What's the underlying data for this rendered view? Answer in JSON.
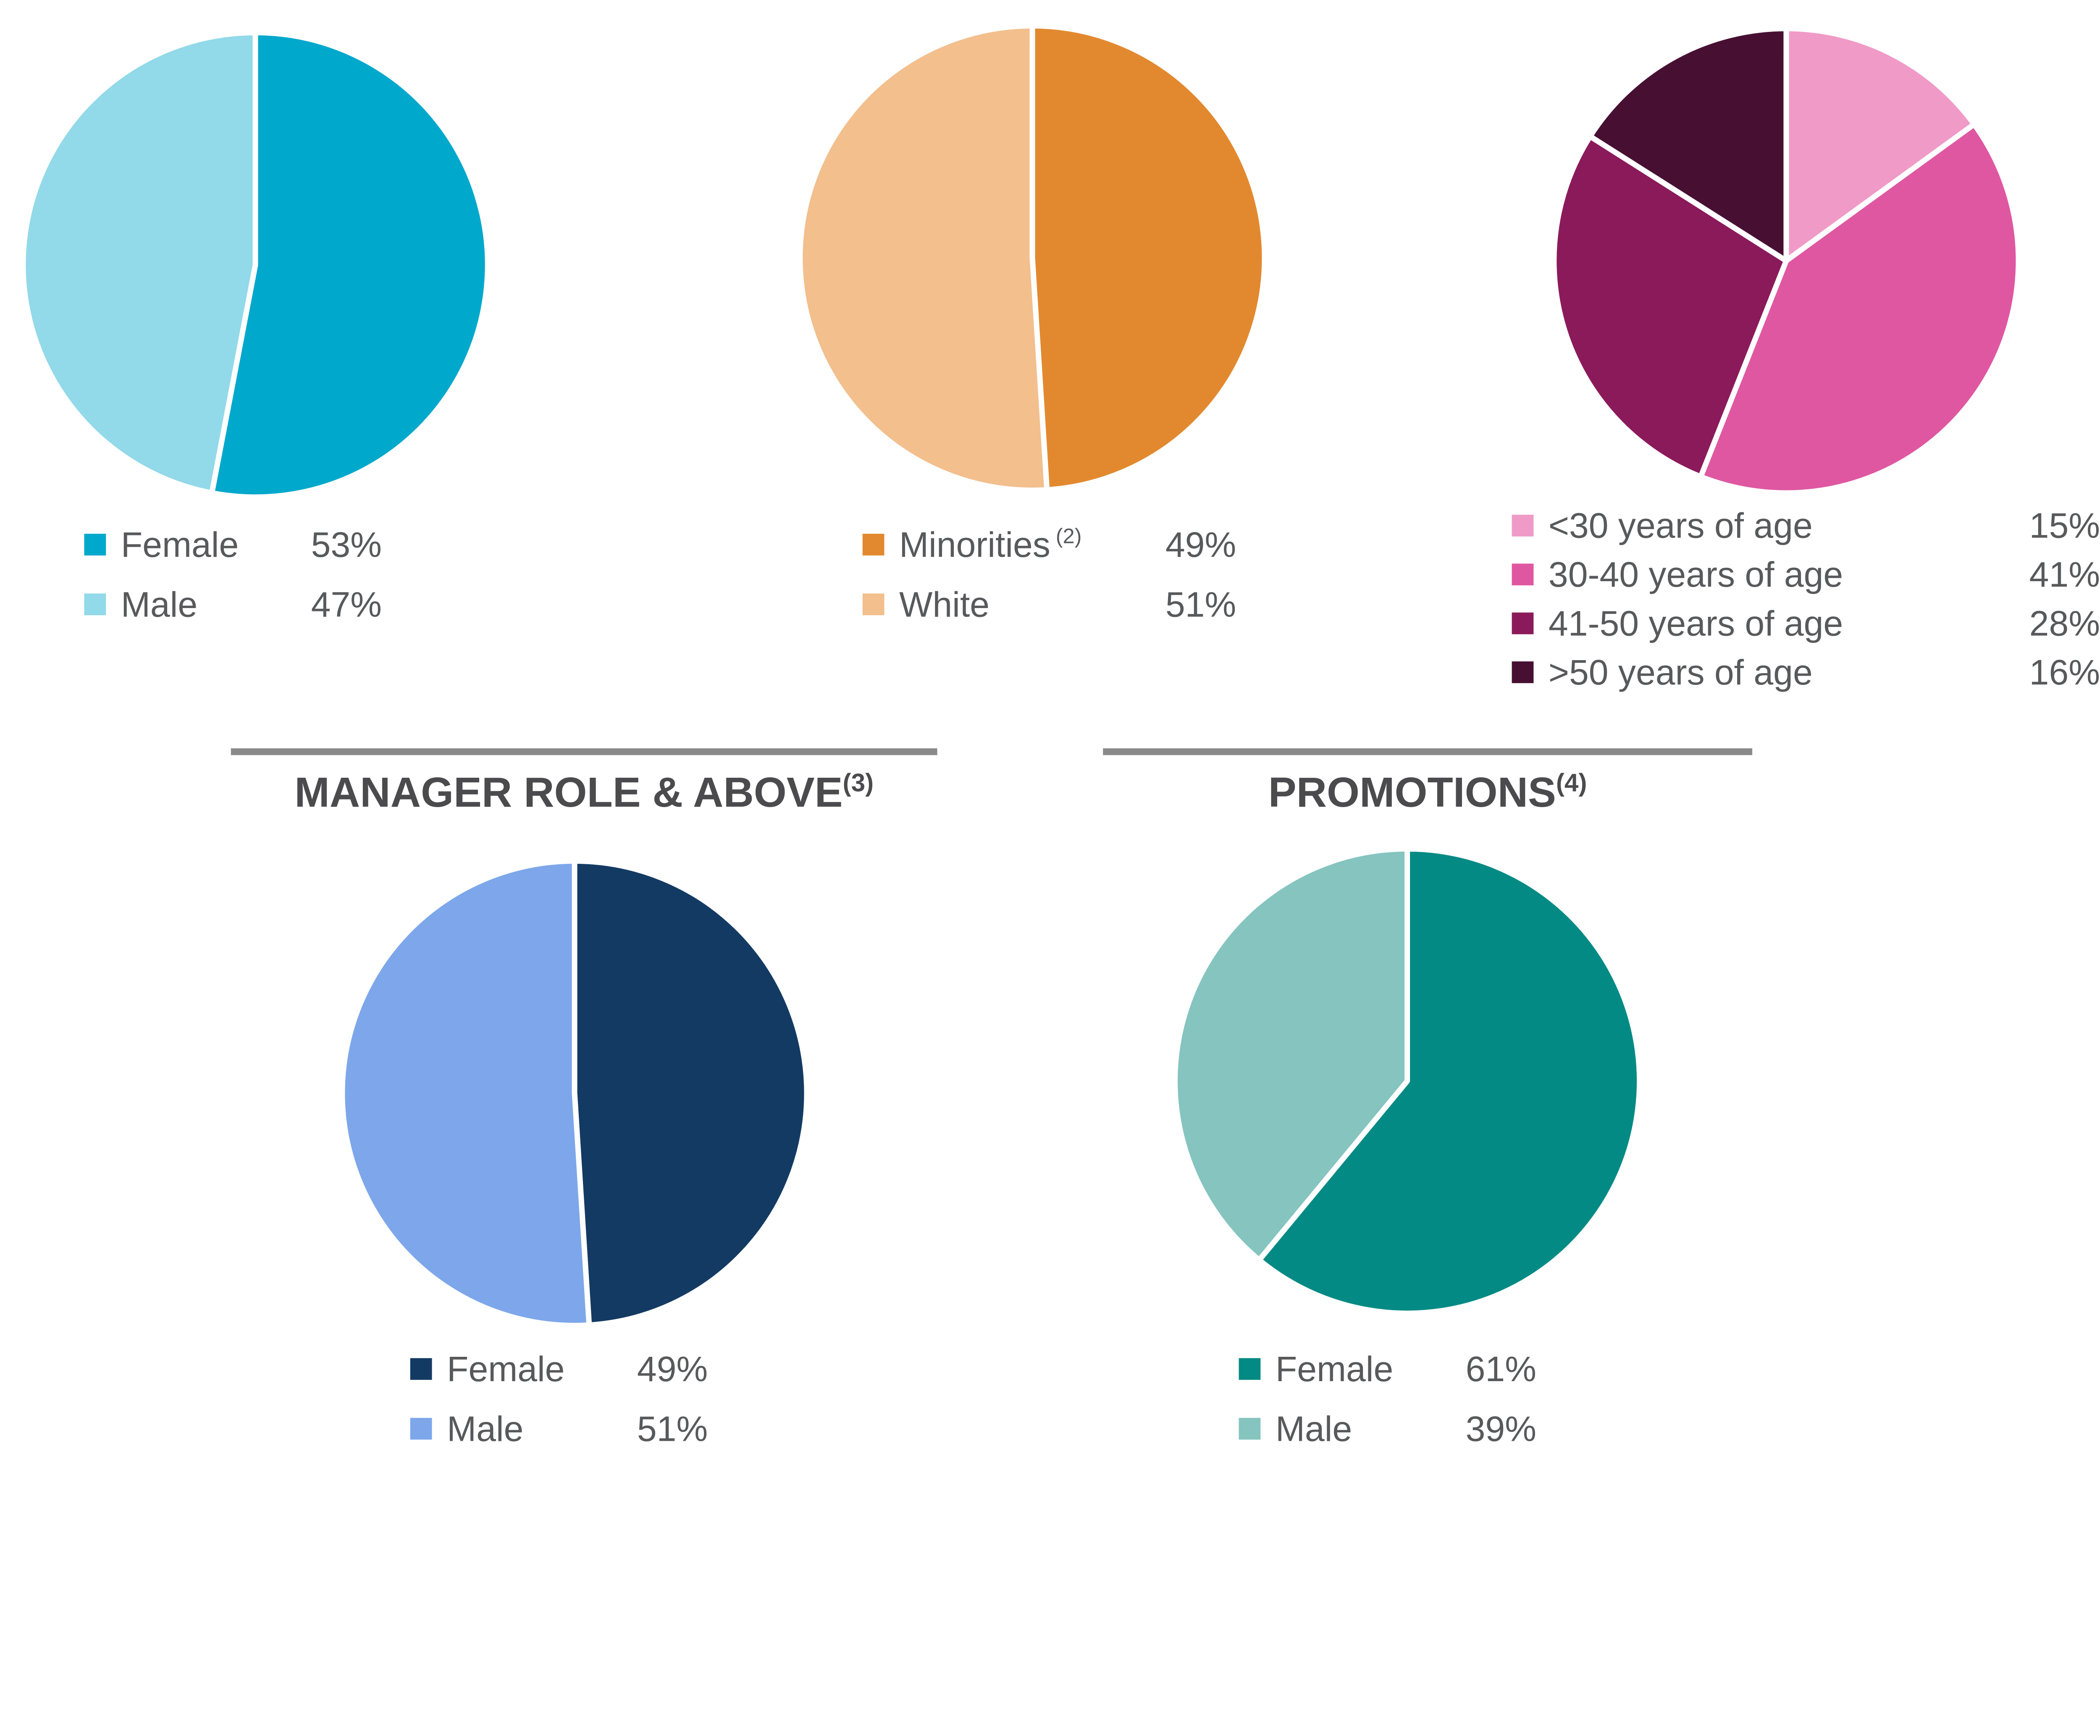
{
  "page": {
    "background": "#FFFFFF",
    "text_color": "#58595B",
    "divider_color": "#8A8A8A"
  },
  "chart_data": [
    {
      "id": "workforce-gender",
      "type": "pie",
      "legend_position": "bottom-left",
      "slices": [
        {
          "label": "Female",
          "sup": "",
          "value_pct": 53,
          "display": "53%",
          "color": "#00A8CC"
        },
        {
          "label": "Male",
          "sup": "",
          "value_pct": 47,
          "display": "47%",
          "color": "#92D9E9"
        }
      ]
    },
    {
      "id": "workforce-ethnicity",
      "type": "pie",
      "legend_position": "bottom-left",
      "slices": [
        {
          "label": "Minorities",
          "sup": "(2)",
          "value_pct": 49,
          "display": "49%",
          "color": "#E2892F"
        },
        {
          "label": "White",
          "sup": "",
          "value_pct": 51,
          "display": "51%",
          "color": "#F2BF8D"
        }
      ]
    },
    {
      "id": "workforce-age",
      "type": "pie",
      "legend_position": "bottom",
      "slices": [
        {
          "label": "<30 years of age",
          "sup": "",
          "value_pct": 15,
          "display": "15%",
          "color": "#F09AC7"
        },
        {
          "label": "30-40 years of age",
          "sup": "",
          "value_pct": 41,
          "display": "41%",
          "color": "#DF57A1"
        },
        {
          "label": "41-50 years of age",
          "sup": "",
          "value_pct": 28,
          "display": "28%",
          "color": "#8B1A5B"
        },
        {
          "label": ">50 years of age",
          "sup": "",
          "value_pct": 16,
          "display": "16%",
          "color": "#471033"
        }
      ]
    },
    {
      "id": "manager-role-gender",
      "type": "pie",
      "title": "MANAGER ROLE & ABOVE",
      "title_sup": "(3)",
      "legend_position": "bottom",
      "slices": [
        {
          "label": "Female",
          "sup": "",
          "value_pct": 49,
          "display": "49%",
          "color": "#133A63"
        },
        {
          "label": "Male",
          "sup": "",
          "value_pct": 51,
          "display": "51%",
          "color": "#7DA7EA"
        }
      ]
    },
    {
      "id": "promotions-gender",
      "type": "pie",
      "title": "PROMOTIONS",
      "title_sup": "(4)",
      "legend_position": "bottom",
      "slices": [
        {
          "label": "Female",
          "sup": "",
          "value_pct": 61,
          "display": "61%",
          "color": "#048A84"
        },
        {
          "label": "Male",
          "sup": "",
          "value_pct": 39,
          "display": "39%",
          "color": "#85C4BF"
        }
      ]
    }
  ]
}
